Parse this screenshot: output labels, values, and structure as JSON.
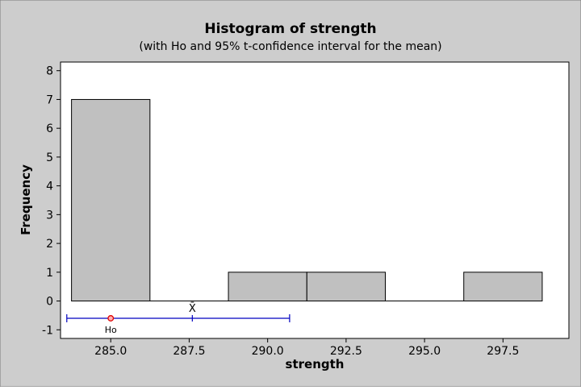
{
  "chart_data": {
    "type": "bar",
    "title": "Histogram of strength",
    "subtitle": "(with Ho and 95% t-confidence interval for the mean)",
    "xlabel": "strength",
    "ylabel": "Frequency",
    "xlim": [
      283.4,
      299.6
    ],
    "ylim": [
      -1.3,
      8.3
    ],
    "x_ticks": [
      "285.0",
      "287.5",
      "290.0",
      "292.5",
      "295.0",
      "297.5"
    ],
    "x_tick_values": [
      285.0,
      287.5,
      290.0,
      292.5,
      295.0,
      297.5
    ],
    "y_ticks": [
      "-1",
      "0",
      "1",
      "2",
      "3",
      "4",
      "5",
      "6",
      "7",
      "8"
    ],
    "y_tick_values": [
      -1,
      0,
      1,
      2,
      3,
      4,
      5,
      6,
      7,
      8
    ],
    "bin_edges": [
      283.75,
      286.25,
      288.75,
      291.25,
      293.75,
      296.25,
      298.75
    ],
    "values": [
      7,
      0,
      1,
      1,
      0,
      1
    ],
    "bar_color": "#c0c0c0",
    "plot_background": "#ffffff",
    "page_background": "#cdcdcd",
    "grid": false,
    "confidence_interval": {
      "lower": 283.6,
      "upper": 290.7,
      "mean": 287.6,
      "mean_label": "X̄",
      "h0": 285.0,
      "h0_label": "Ho",
      "y": -0.6,
      "line_color": "#0000c0",
      "h0_color": "#e00000"
    }
  }
}
